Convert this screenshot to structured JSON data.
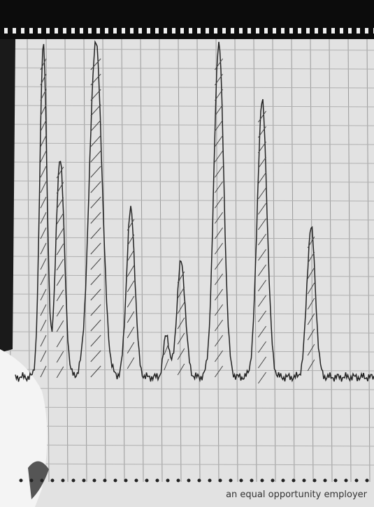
{
  "footer": {
    "text": "an equal opportunity employer"
  }
}
